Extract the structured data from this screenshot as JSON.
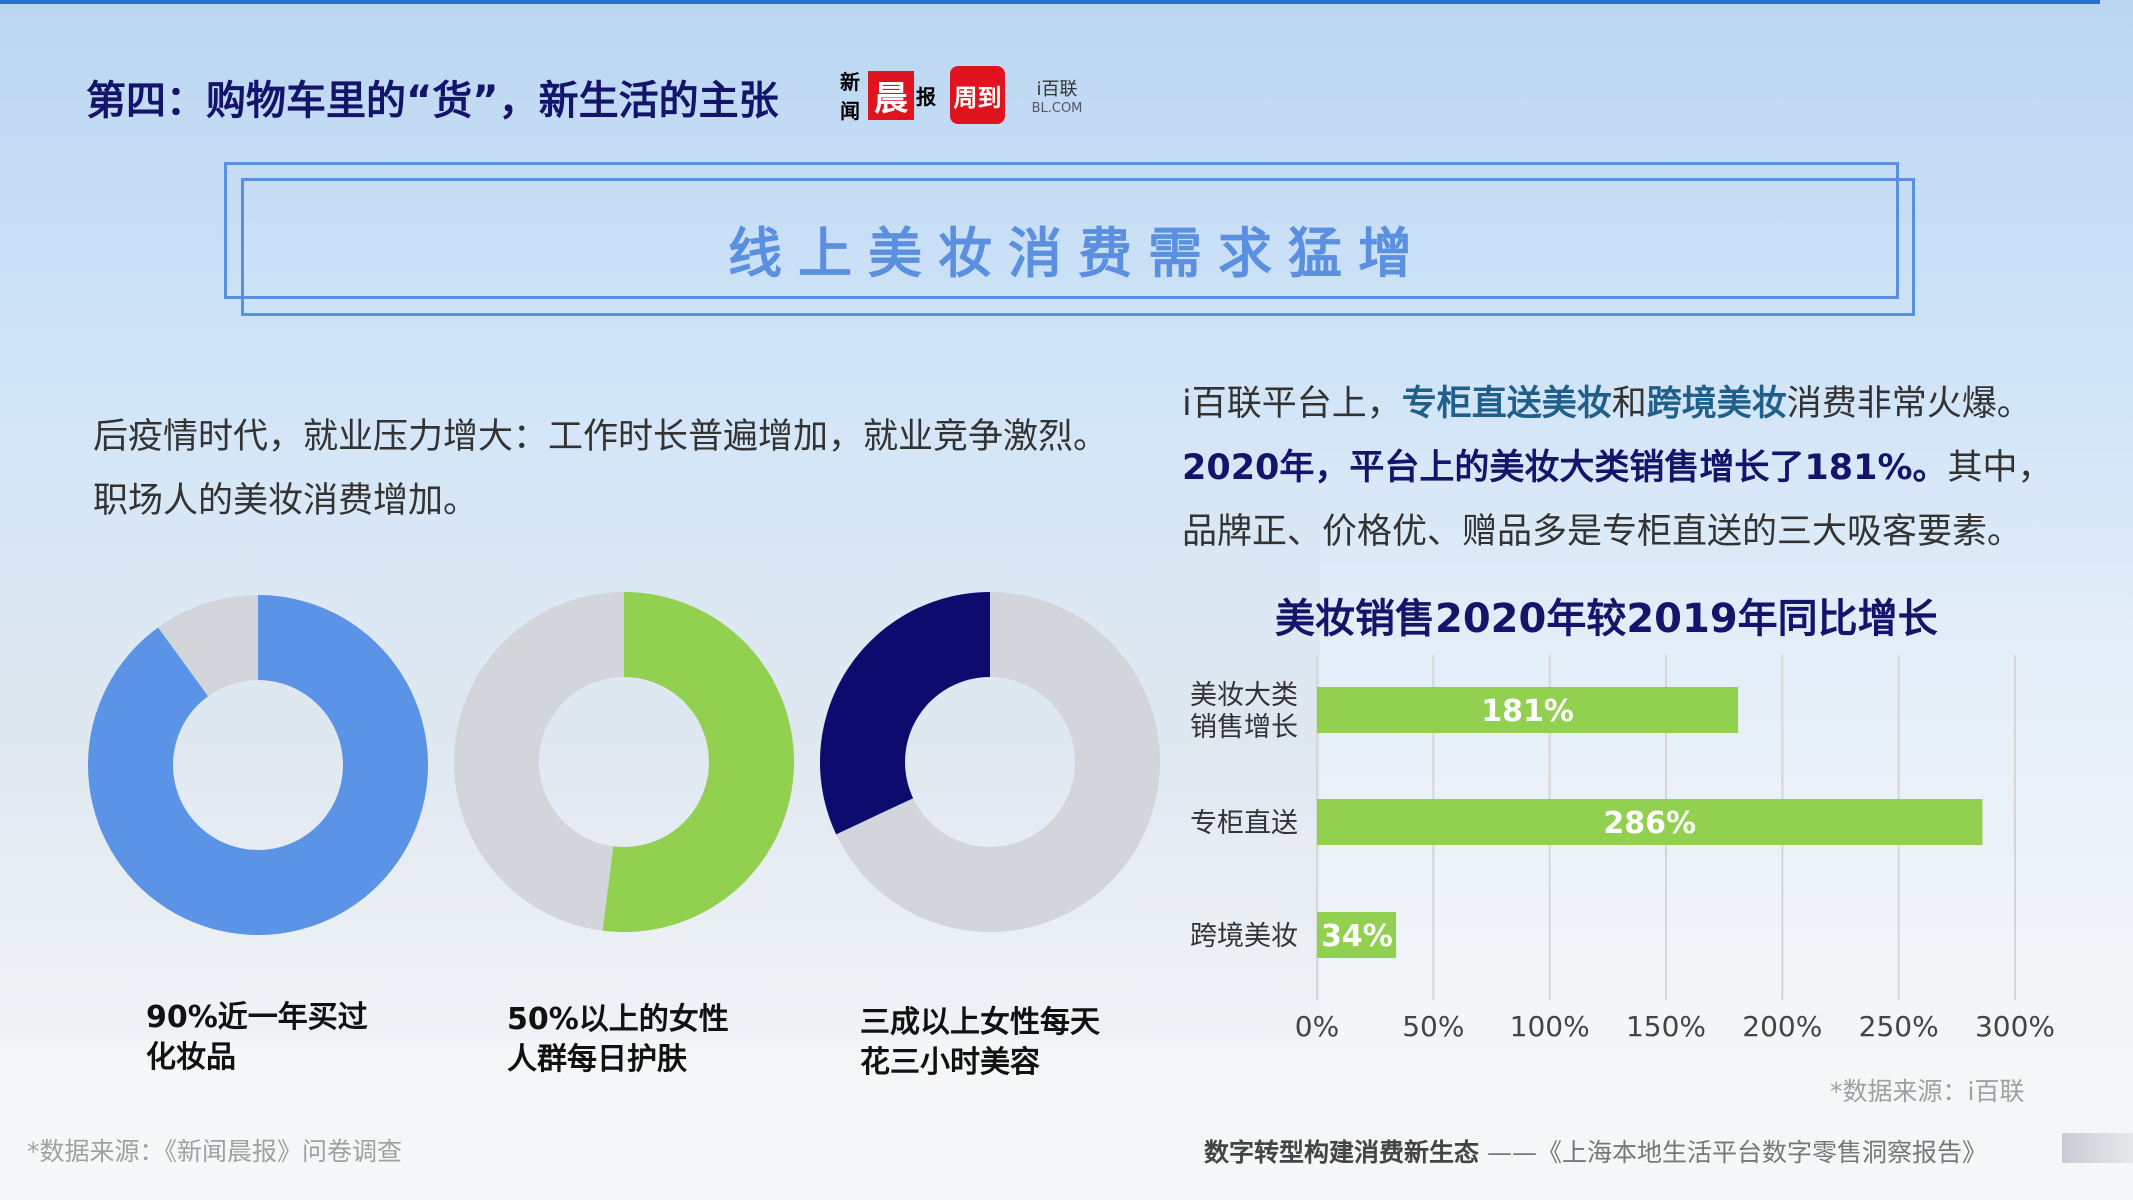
{
  "header": {
    "title": "第四：购物车里的“货”，新生活的主张",
    "logos": [
      {
        "text_small": "新闻",
        "text_big": "晨",
        "text_tail": "报"
      },
      {
        "text": "周到"
      },
      {
        "text": "i百联",
        "sub": "BL.COM"
      }
    ]
  },
  "headline": "线上美妆消费需求猛增",
  "left_text": {
    "line1": "后疫情时代，就业压力增大：工作时长普遍增加，就业竞争激烈。",
    "line2": "职场人的美妆消费增加。"
  },
  "right_text": {
    "l1_a": "i百联平台上，",
    "l1_b": "专柜直送美妆",
    "l1_c": "和",
    "l1_d": "跨境美妆",
    "l1_e": "消费非常火爆。",
    "l2_a": "2020年，平台上的美妆大类销售增长了181%。",
    "l2_b": "其中，",
    "l3": "品牌正、价格优、赠品多是专柜直送的三大吸客要素。"
  },
  "donuts": [
    {
      "label1": "90%近一年买过",
      "label2": "化妆品",
      "value": 0.9,
      "color": "#5b93e6",
      "rest_color": "#d2d5d9",
      "direction": "clockwise"
    },
    {
      "label1": "50%以上的女性",
      "label2": "人群每日护肤",
      "value": 0.52,
      "color": "#92d050",
      "rest_color": "#d2d5d9",
      "direction": "clockwise"
    },
    {
      "label1": "三成以上女性每天",
      "label2": "花三小时美容",
      "value": 0.32,
      "color": "#0c0c6e",
      "rest_color": "#d2d5d9",
      "direction": "counterclockwise"
    }
  ],
  "chart_data": {
    "type": "bar",
    "orientation": "horizontal",
    "title": "美妆销售2020年较2019年同比增长",
    "categories": [
      "美妆大类销售增长",
      "专柜直送",
      "跨境美妆"
    ],
    "values": [
      181,
      286,
      34
    ],
    "data_labels": [
      "181%",
      "286%",
      "34%"
    ],
    "xlim": [
      0,
      300
    ],
    "xticks": [
      "0%",
      "50%",
      "100%",
      "150%",
      "200%",
      "250%",
      "300%"
    ],
    "grid": true,
    "bar_color": "#92d050"
  },
  "sources": {
    "left": "*数据来源：《新闻晨报》问卷调查",
    "right": "*数据来源：i百联"
  },
  "footer": {
    "main": "数字转型构建消费新生态",
    "rest": " ——《上海本地生活平台数字零售洞察报告》"
  }
}
